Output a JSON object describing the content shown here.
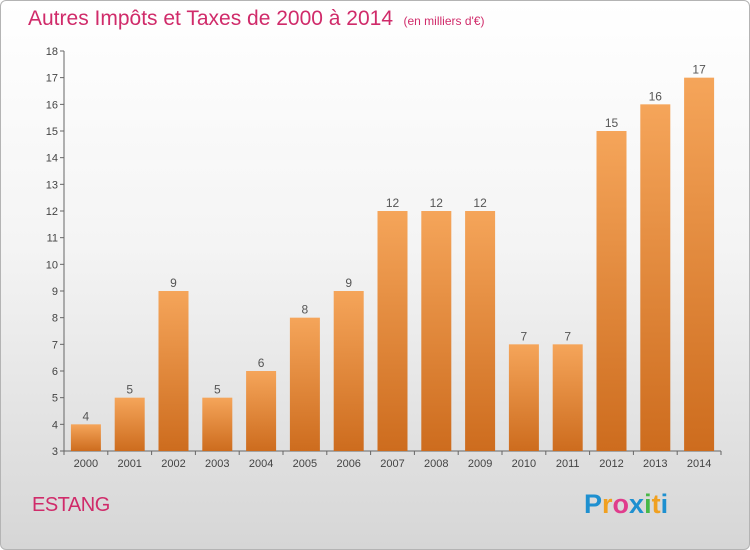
{
  "header": {
    "title": "Autres Impôts et Taxes de 2000 à 2014",
    "subtitle": "(en milliers d'€)"
  },
  "footer": {
    "commune": "ESTANG",
    "logo_letters": [
      "P",
      "r",
      "o",
      "x",
      "i",
      "t",
      "i"
    ],
    "logo_colors": [
      "#1e90d0",
      "#f0a020",
      "#e03c8c",
      "#1e90d0",
      "#48b848",
      "#f0a020",
      "#1e90d0"
    ]
  },
  "chart_data": {
    "type": "bar",
    "categories": [
      "2000",
      "2001",
      "2002",
      "2003",
      "2004",
      "2005",
      "2006",
      "2007",
      "2008",
      "2009",
      "2010",
      "2011",
      "2012",
      "2013",
      "2014"
    ],
    "values": [
      4,
      5,
      9,
      5,
      6,
      8,
      9,
      12,
      12,
      12,
      7,
      7,
      15,
      16,
      17
    ],
    "ylim": [
      3,
      18
    ],
    "yticks": [
      3,
      4,
      5,
      6,
      7,
      8,
      9,
      10,
      11,
      12,
      13,
      14,
      15,
      16,
      17,
      18
    ],
    "grid": false,
    "bar_color_top": "#f5a55a",
    "bar_color_bottom": "#cd6c1e",
    "axis_color": "#666666"
  }
}
